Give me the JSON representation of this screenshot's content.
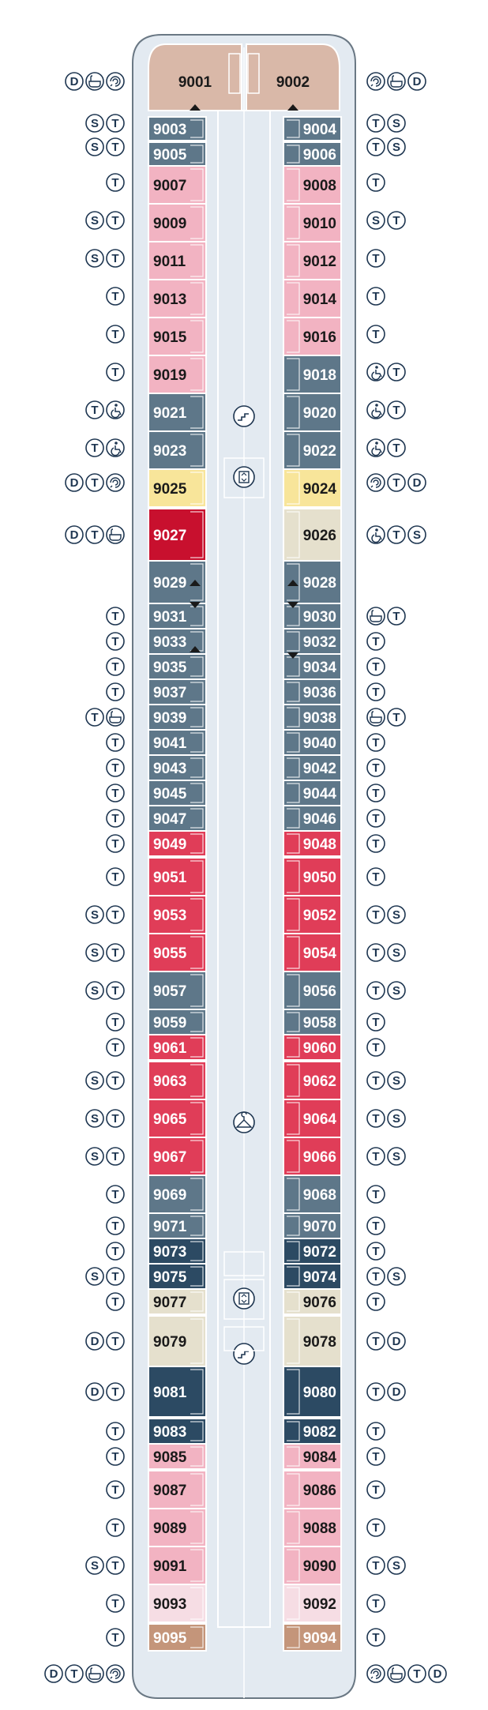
{
  "colors": {
    "hull_outline": "#6a7884",
    "hull_fill": "#e3eaf1",
    "corridor": "#e3eaf1",
    "owners_suite": "#d9b8a8",
    "grand_suite": "#c4957a",
    "pink_veranda": "#f2b3c2",
    "light_pink": "#f6dde4",
    "slate": "#5e7789",
    "navy": "#2c4a63",
    "red": "#e03d58",
    "dark_red": "#c8102e",
    "yellow": "#f8e59a",
    "beige": "#e5e0cd",
    "icon_stroke": "#1d3550",
    "text_dark": "#1a1a1a",
    "text_light": "#ffffff"
  },
  "icon_legend": {
    "D": "d-icon",
    "T": "t-icon",
    "S": "s-icon",
    "tub": "bathtub-icon",
    "spa": "whirlpool-icon",
    "wc": "wheelchair-icon"
  },
  "cabins": [
    {
      "num": "9001",
      "side": "L",
      "tone": "owners_suite"
    },
    {
      "num": "9002",
      "side": "R",
      "tone": "owners_suite"
    },
    {
      "num": "9003",
      "side": "L",
      "tone": "slate"
    },
    {
      "num": "9004",
      "side": "R",
      "tone": "slate"
    },
    {
      "num": "9005",
      "side": "L",
      "tone": "slate"
    },
    {
      "num": "9006",
      "side": "R",
      "tone": "slate"
    },
    {
      "num": "9007",
      "side": "L",
      "tone": "pink_veranda"
    },
    {
      "num": "9008",
      "side": "R",
      "tone": "pink_veranda"
    },
    {
      "num": "9009",
      "side": "L",
      "tone": "pink_veranda"
    },
    {
      "num": "9010",
      "side": "R",
      "tone": "pink_veranda"
    },
    {
      "num": "9011",
      "side": "L",
      "tone": "pink_veranda"
    },
    {
      "num": "9012",
      "side": "R",
      "tone": "pink_veranda"
    },
    {
      "num": "9013",
      "side": "L",
      "tone": "pink_veranda"
    },
    {
      "num": "9014",
      "side": "R",
      "tone": "pink_veranda"
    },
    {
      "num": "9015",
      "side": "L",
      "tone": "pink_veranda"
    },
    {
      "num": "9016",
      "side": "R",
      "tone": "pink_veranda"
    },
    {
      "num": "9019",
      "side": "L",
      "tone": "pink_veranda"
    },
    {
      "num": "9018",
      "side": "R",
      "tone": "slate"
    },
    {
      "num": "9021",
      "side": "L",
      "tone": "slate"
    },
    {
      "num": "9020",
      "side": "R",
      "tone": "slate"
    },
    {
      "num": "9023",
      "side": "L",
      "tone": "slate"
    },
    {
      "num": "9022",
      "side": "R",
      "tone": "slate"
    },
    {
      "num": "9025",
      "side": "L",
      "tone": "yellow"
    },
    {
      "num": "9024",
      "side": "R",
      "tone": "yellow"
    },
    {
      "num": "9027",
      "side": "L",
      "tone": "dark_red"
    },
    {
      "num": "9026",
      "side": "R",
      "tone": "beige"
    },
    {
      "num": "9029",
      "side": "L",
      "tone": "slate"
    },
    {
      "num": "9028",
      "side": "R",
      "tone": "slate"
    },
    {
      "num": "9031",
      "side": "L",
      "tone": "slate"
    },
    {
      "num": "9030",
      "side": "R",
      "tone": "slate"
    },
    {
      "num": "9033",
      "side": "L",
      "tone": "slate"
    },
    {
      "num": "9032",
      "side": "R",
      "tone": "slate"
    },
    {
      "num": "9035",
      "side": "L",
      "tone": "slate"
    },
    {
      "num": "9034",
      "side": "R",
      "tone": "slate"
    },
    {
      "num": "9037",
      "side": "L",
      "tone": "slate"
    },
    {
      "num": "9036",
      "side": "R",
      "tone": "slate"
    },
    {
      "num": "9039",
      "side": "L",
      "tone": "slate"
    },
    {
      "num": "9038",
      "side": "R",
      "tone": "slate"
    },
    {
      "num": "9041",
      "side": "L",
      "tone": "slate"
    },
    {
      "num": "9040",
      "side": "R",
      "tone": "slate"
    },
    {
      "num": "9043",
      "side": "L",
      "tone": "slate"
    },
    {
      "num": "9042",
      "side": "R",
      "tone": "slate"
    },
    {
      "num": "9045",
      "side": "L",
      "tone": "slate"
    },
    {
      "num": "9044",
      "side": "R",
      "tone": "slate"
    },
    {
      "num": "9047",
      "side": "L",
      "tone": "slate"
    },
    {
      "num": "9046",
      "side": "R",
      "tone": "slate"
    },
    {
      "num": "9049",
      "side": "L",
      "tone": "red"
    },
    {
      "num": "9048",
      "side": "R",
      "tone": "red"
    },
    {
      "num": "9051",
      "side": "L",
      "tone": "red"
    },
    {
      "num": "9050",
      "side": "R",
      "tone": "red"
    },
    {
      "num": "9053",
      "side": "L",
      "tone": "red"
    },
    {
      "num": "9052",
      "side": "R",
      "tone": "red"
    },
    {
      "num": "9055",
      "side": "L",
      "tone": "red"
    },
    {
      "num": "9054",
      "side": "R",
      "tone": "red"
    },
    {
      "num": "9057",
      "side": "L",
      "tone": "slate"
    },
    {
      "num": "9056",
      "side": "R",
      "tone": "slate"
    },
    {
      "num": "9059",
      "side": "L",
      "tone": "slate"
    },
    {
      "num": "9058",
      "side": "R",
      "tone": "slate"
    },
    {
      "num": "9061",
      "side": "L",
      "tone": "red"
    },
    {
      "num": "9060",
      "side": "R",
      "tone": "red"
    },
    {
      "num": "9063",
      "side": "L",
      "tone": "red"
    },
    {
      "num": "9062",
      "side": "R",
      "tone": "red"
    },
    {
      "num": "9065",
      "side": "L",
      "tone": "red"
    },
    {
      "num": "9064",
      "side": "R",
      "tone": "red"
    },
    {
      "num": "9067",
      "side": "L",
      "tone": "red"
    },
    {
      "num": "9066",
      "side": "R",
      "tone": "red"
    },
    {
      "num": "9069",
      "side": "L",
      "tone": "slate"
    },
    {
      "num": "9068",
      "side": "R",
      "tone": "slate"
    },
    {
      "num": "9071",
      "side": "L",
      "tone": "slate"
    },
    {
      "num": "9070",
      "side": "R",
      "tone": "slate"
    },
    {
      "num": "9073",
      "side": "L",
      "tone": "navy"
    },
    {
      "num": "9072",
      "side": "R",
      "tone": "navy"
    },
    {
      "num": "9075",
      "side": "L",
      "tone": "navy"
    },
    {
      "num": "9074",
      "side": "R",
      "tone": "navy"
    },
    {
      "num": "9077",
      "side": "L",
      "tone": "beige"
    },
    {
      "num": "9076",
      "side": "R",
      "tone": "beige"
    },
    {
      "num": "9079",
      "side": "L",
      "tone": "beige"
    },
    {
      "num": "9078",
      "side": "R",
      "tone": "beige"
    },
    {
      "num": "9081",
      "side": "L",
      "tone": "navy"
    },
    {
      "num": "9080",
      "side": "R",
      "tone": "navy"
    },
    {
      "num": "9083",
      "side": "L",
      "tone": "navy"
    },
    {
      "num": "9082",
      "side": "R",
      "tone": "navy"
    },
    {
      "num": "9085",
      "side": "L",
      "tone": "pink_veranda"
    },
    {
      "num": "9084",
      "side": "R",
      "tone": "pink_veranda"
    },
    {
      "num": "9087",
      "side": "L",
      "tone": "pink_veranda"
    },
    {
      "num": "9086",
      "side": "R",
      "tone": "pink_veranda"
    },
    {
      "num": "9089",
      "side": "L",
      "tone": "pink_veranda"
    },
    {
      "num": "9088",
      "side": "R",
      "tone": "pink_veranda"
    },
    {
      "num": "9091",
      "side": "L",
      "tone": "pink_veranda"
    },
    {
      "num": "9090",
      "side": "R",
      "tone": "pink_veranda"
    },
    {
      "num": "9093",
      "side": "L",
      "tone": "light_pink"
    },
    {
      "num": "9092",
      "side": "R",
      "tone": "light_pink"
    },
    {
      "num": "9095",
      "side": "L",
      "tone": "grand_suite"
    },
    {
      "num": "9094",
      "side": "R",
      "tone": "grand_suite"
    }
  ],
  "icon_rows": [
    {
      "left": [
        "D",
        "tub",
        "spa"
      ],
      "right": [
        "spa",
        "tub",
        "D"
      ]
    },
    {
      "left": [
        "S",
        "T"
      ],
      "right": [
        "T",
        "S"
      ]
    },
    {
      "left": [
        "S",
        "T"
      ],
      "right": [
        "T",
        "S"
      ]
    },
    {
      "left": [
        "T"
      ],
      "right": [
        "T"
      ]
    },
    {
      "left": [
        "S",
        "T"
      ],
      "right": [
        "S",
        "T"
      ]
    },
    {
      "left": [
        "S",
        "T"
      ],
      "right": [
        "T"
      ]
    },
    {
      "left": [
        "T"
      ],
      "right": [
        "T"
      ]
    },
    {
      "left": [
        "T"
      ],
      "right": [
        "T"
      ]
    },
    {
      "left": [
        "T"
      ],
      "right": [
        "wc",
        "T"
      ]
    },
    {
      "left": [
        "T",
        "wc"
      ],
      "right": [
        "wc",
        "T"
      ]
    },
    {
      "left": [
        "T",
        "wc"
      ],
      "right": [
        "wc",
        "T"
      ]
    },
    {
      "left": [
        "D",
        "T",
        "spa"
      ],
      "right": [
        "spa",
        "T",
        "D"
      ]
    },
    {
      "left": [
        "D",
        "T",
        "tub"
      ],
      "right": [
        "wc",
        "T",
        "S"
      ]
    },
    {
      "left": [
        "T"
      ],
      "right": [
        "tub",
        "T"
      ]
    },
    {
      "left": [
        "T"
      ],
      "right": [
        "T"
      ]
    },
    {
      "left": [
        "T"
      ],
      "right": [
        "T"
      ]
    },
    {
      "left": [
        "T"
      ],
      "right": [
        "T"
      ]
    },
    {
      "left": [
        "T",
        "tub"
      ],
      "right": [
        "tub",
        "T"
      ]
    },
    {
      "left": [
        "T"
      ],
      "right": [
        "T"
      ]
    },
    {
      "left": [
        "T"
      ],
      "right": [
        "T"
      ]
    },
    {
      "left": [
        "T"
      ],
      "right": [
        "T"
      ]
    },
    {
      "left": [
        "T"
      ],
      "right": [
        "T"
      ]
    },
    {
      "left": [
        "T"
      ],
      "right": [
        "T"
      ]
    },
    {
      "left": [
        "T"
      ],
      "right": [
        "T"
      ]
    },
    {
      "left": [
        "S",
        "T"
      ],
      "right": [
        "T",
        "S"
      ]
    },
    {
      "left": [
        "S",
        "T"
      ],
      "right": [
        "T",
        "S"
      ]
    },
    {
      "left": [
        "S",
        "T"
      ],
      "right": [
        "T",
        "S"
      ]
    },
    {
      "left": [
        "T"
      ],
      "right": [
        "T"
      ]
    },
    {
      "left": [
        "T"
      ],
      "right": [
        "T"
      ]
    },
    {
      "left": [
        "S",
        "T"
      ],
      "right": [
        "T",
        "S"
      ]
    },
    {
      "left": [
        "S",
        "T"
      ],
      "right": [
        "T",
        "S"
      ]
    },
    {
      "left": [
        "S",
        "T"
      ],
      "right": [
        "T",
        "S"
      ]
    },
    {
      "left": [
        "T"
      ],
      "right": [
        "T"
      ]
    },
    {
      "left": [
        "T"
      ],
      "right": [
        "T"
      ]
    },
    {
      "left": [
        "T"
      ],
      "right": [
        "T"
      ]
    },
    {
      "left": [
        "S",
        "T"
      ],
      "right": [
        "T",
        "S"
      ]
    },
    {
      "left": [
        "T"
      ],
      "right": [
        "T"
      ]
    },
    {
      "left": [
        "D",
        "T"
      ],
      "right": [
        "T",
        "D"
      ]
    },
    {
      "left": [
        "D",
        "T"
      ],
      "right": [
        "T",
        "D"
      ]
    },
    {
      "left": [
        "T"
      ],
      "right": [
        "T"
      ]
    },
    {
      "left": [
        "T"
      ],
      "right": [
        "T"
      ]
    },
    {
      "left": [
        "T"
      ],
      "right": [
        "T"
      ]
    },
    {
      "left": [
        "T"
      ],
      "right": [
        "T"
      ]
    },
    {
      "left": [
        "S",
        "T"
      ],
      "right": [
        "T",
        "S"
      ]
    },
    {
      "left": [
        "T"
      ],
      "right": [
        "T"
      ]
    },
    {
      "left": [
        "T"
      ],
      "right": [
        "T"
      ]
    },
    {
      "left": [
        "D",
        "T",
        "tub",
        "spa"
      ],
      "right": [
        "spa",
        "tub",
        "T",
        "D"
      ]
    }
  ],
  "amenities": [
    "stairs-icon",
    "elevator-icon",
    "hanger-icon"
  ]
}
